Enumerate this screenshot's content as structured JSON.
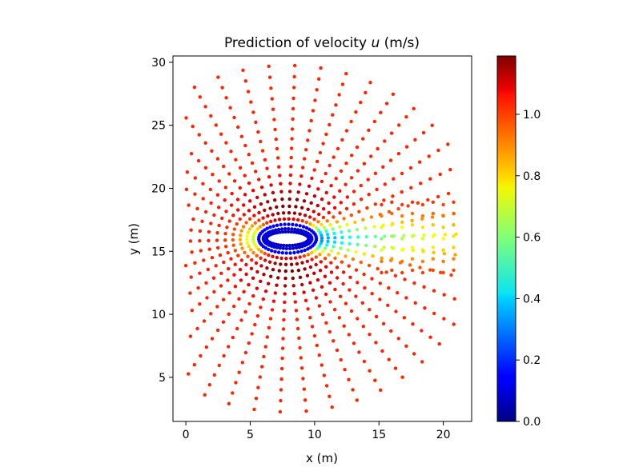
{
  "chart_data": {
    "type": "scatter",
    "title": "Prediction of velocity u (m/s)",
    "title_parts": {
      "prefix": "Prediction of velocity ",
      "symbol": "u",
      "suffix": " (m/s)"
    },
    "xlabel": "x (m)",
    "ylabel": "y (m)",
    "xlim": [
      -1,
      22.2
    ],
    "ylim": [
      1.5,
      30.5
    ],
    "xticks": [
      0,
      5,
      10,
      15,
      20
    ],
    "yticks": [
      5,
      10,
      15,
      20,
      25,
      30
    ],
    "colorbar": {
      "colormap": "jet",
      "min": 0.0,
      "max": 1.19,
      "ticks": [
        0.0,
        0.2,
        0.4,
        0.6,
        0.8,
        1.0
      ],
      "tick_labels": [
        "0.0",
        "0.2",
        "0.4",
        "0.6",
        "0.8",
        "1.0"
      ]
    },
    "mesh": {
      "description_of_points": "radial O-grid mesh around an elliptical cylinder plus a wake region",
      "cylinder": {
        "center": [
          7.9,
          16.0
        ],
        "semi_axis_x": 1.65,
        "semi_axis_y": 0.55
      },
      "outer_radius": 13.2,
      "n_rings": 21,
      "n_spokes": 46,
      "upstream_boundary_x": 0.0,
      "downstream_boundary_x": 21.0,
      "freestream_u": 1.0,
      "max_u": 1.19,
      "wake_min_u": 0.05
    }
  }
}
